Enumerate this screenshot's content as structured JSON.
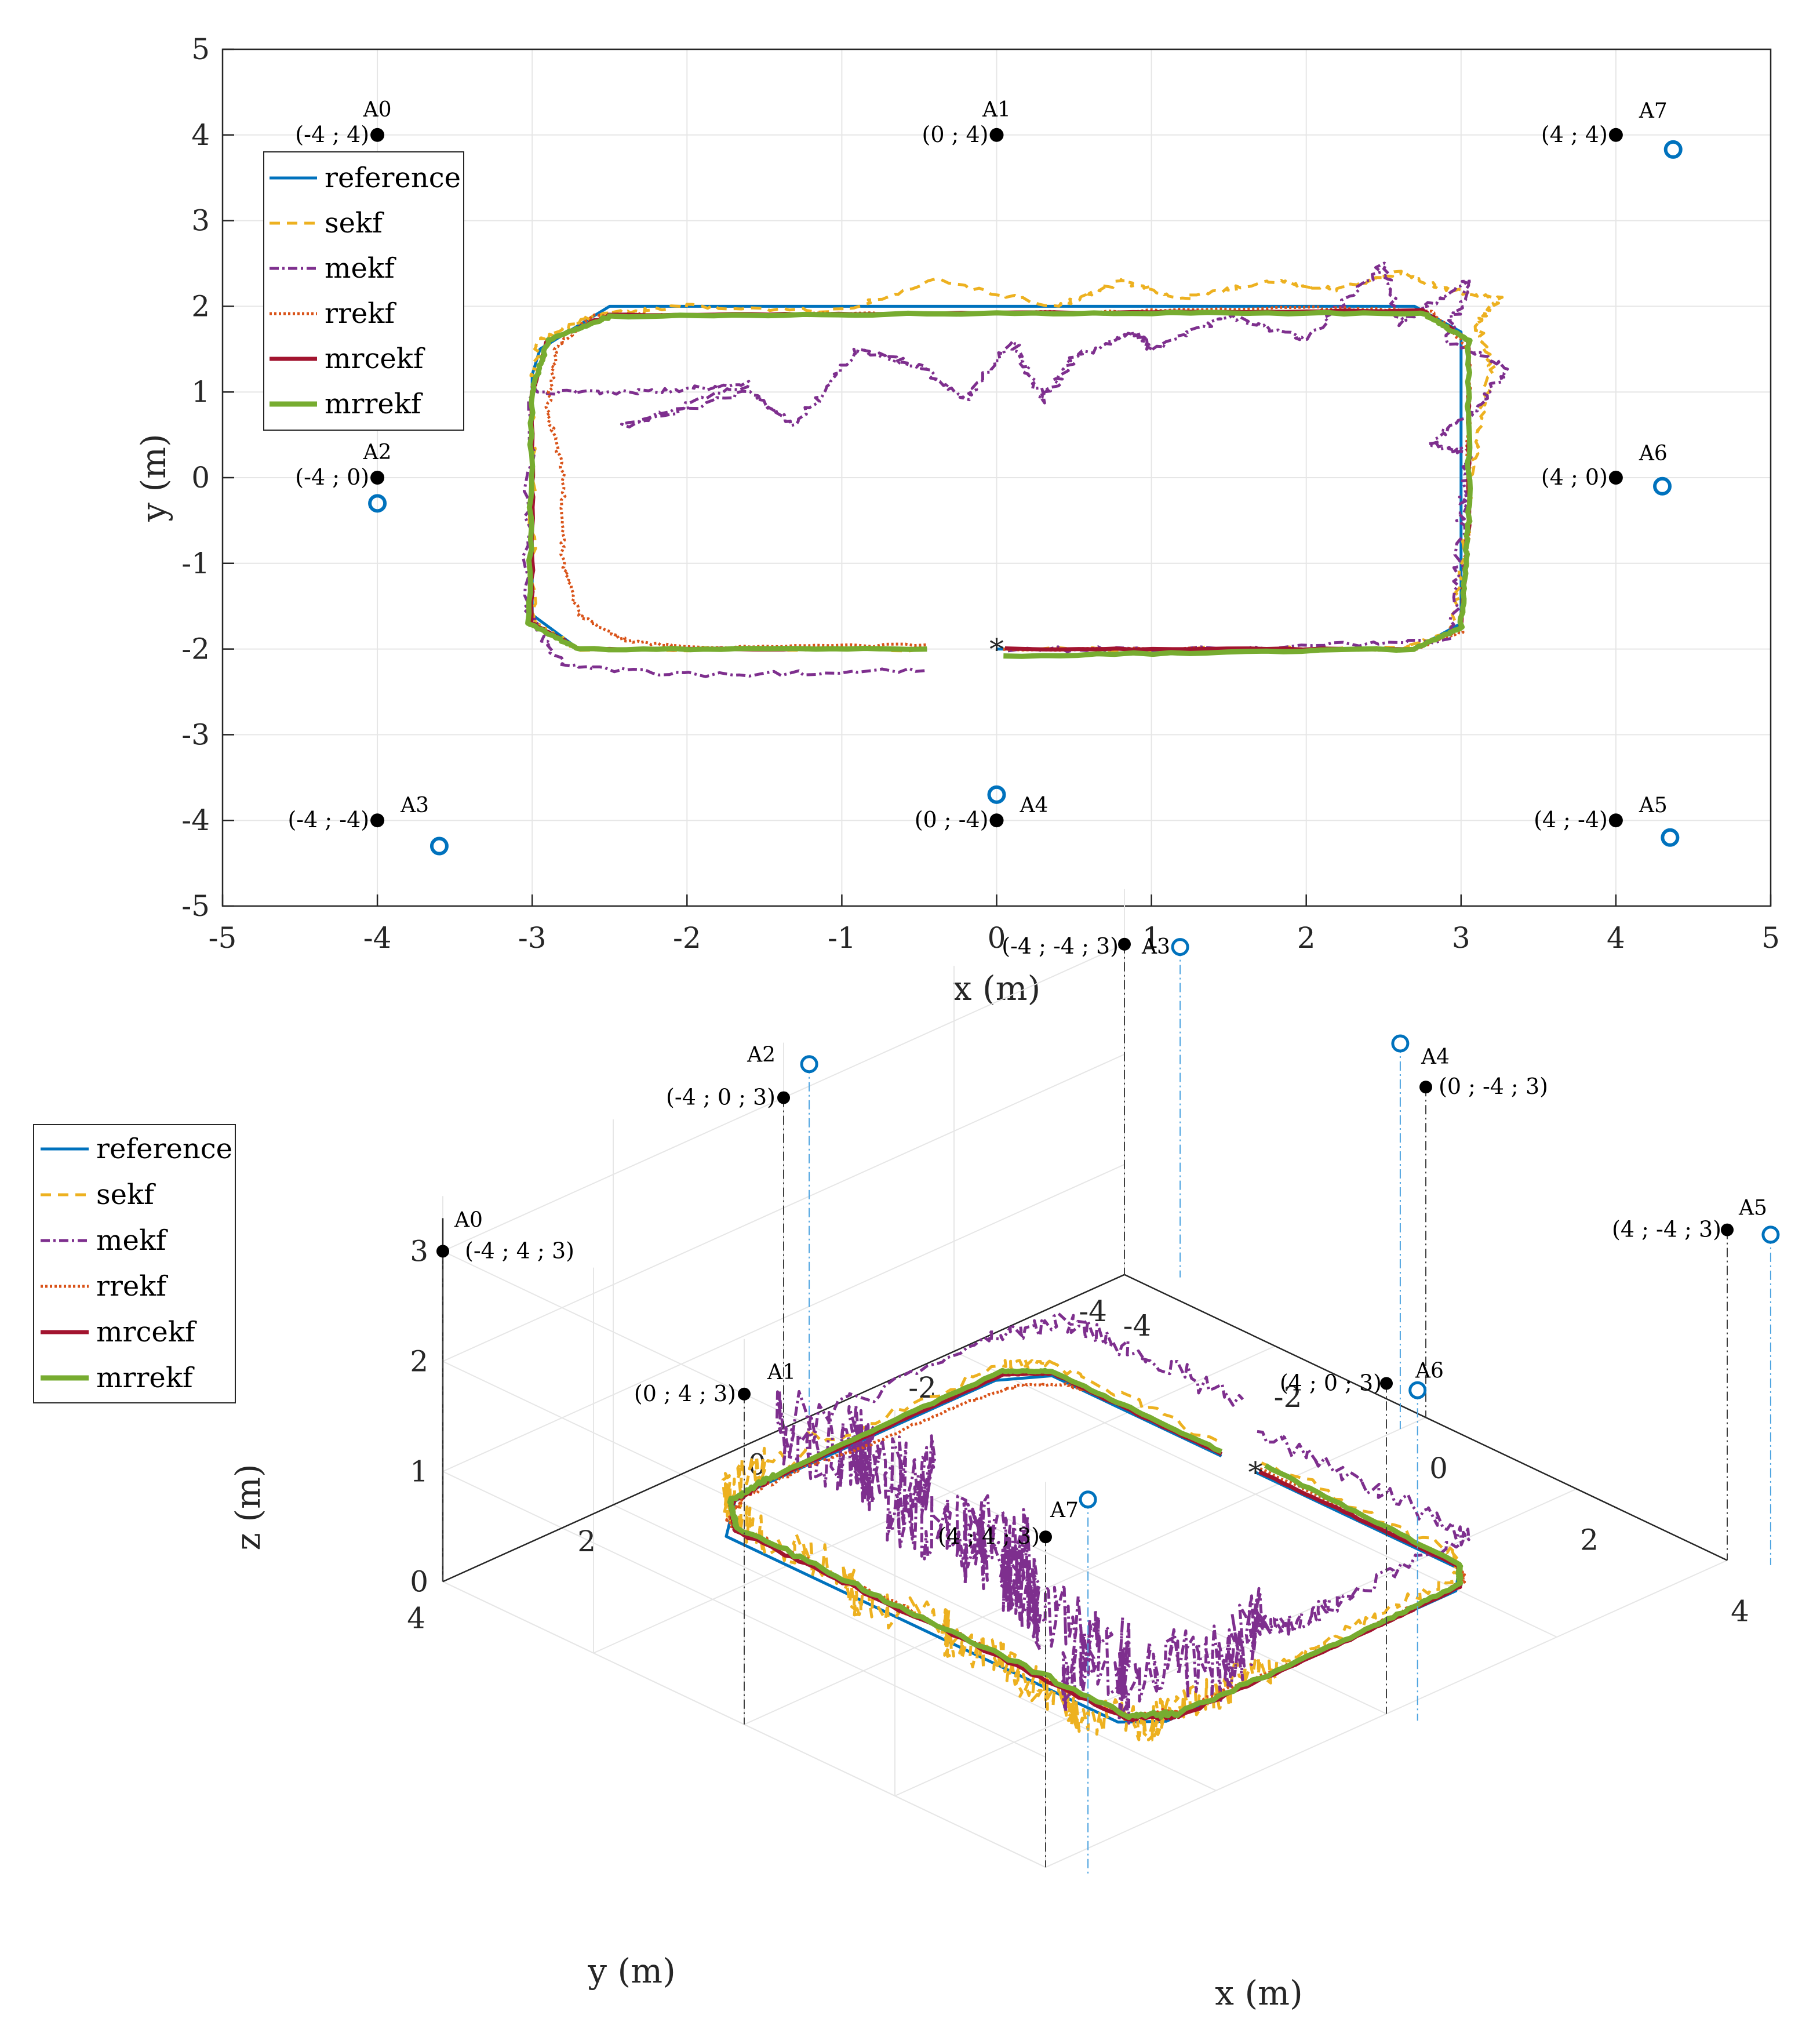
{
  "chart_data": [
    {
      "type": "line",
      "view": "top",
      "xlabel": "x (m)",
      "ylabel": "y (m)",
      "xlim": [
        -5,
        5
      ],
      "ylim": [
        -5,
        5
      ],
      "grid": true,
      "xticks": [
        "-5",
        "-4",
        "-3",
        "-2",
        "-1",
        "0",
        "1",
        "2",
        "3",
        "4",
        "5"
      ],
      "yticks": [
        "5",
        "4",
        "3",
        "2",
        "1",
        "0",
        "-1",
        "-2",
        "-3",
        "-4",
        "-5"
      ],
      "legend_position": "top-left",
      "anchors": [
        {
          "name": "A0",
          "label": "(-4 ; 4)",
          "x": -4,
          "y": 4,
          "est": null
        },
        {
          "name": "A1",
          "label": "(0 ; 4)",
          "x": 0,
          "y": 4,
          "est": null
        },
        {
          "name": "A2",
          "label": "(-4 ; 0)",
          "x": -4,
          "y": 0,
          "est": [
            -4.0,
            -0.3
          ]
        },
        {
          "name": "A3",
          "label": "(-4 ; -4)",
          "x": -4,
          "y": -4,
          "est": [
            -3.6,
            -4.3
          ]
        },
        {
          "name": "A4",
          "label": "(0 ; -4)",
          "x": 0,
          "y": -4,
          "est": [
            0.0,
            -3.7
          ]
        },
        {
          "name": "A5",
          "label": "(4 ; -4)",
          "x": 4,
          "y": -4,
          "est": [
            4.35,
            -4.2
          ]
        },
        {
          "name": "A6",
          "label": "(4 ; 0)",
          "x": 4,
          "y": 0,
          "est": [
            4.3,
            -0.1
          ]
        },
        {
          "name": "A7",
          "label": "(4 ; 4)",
          "x": 4,
          "y": 4,
          "est": [
            4.37,
            3.83
          ]
        }
      ],
      "series": [
        {
          "name": "reference",
          "color": "#0072BD",
          "dash": "",
          "width": 5,
          "points": [
            [
              0,
              -2
            ],
            [
              2.7,
              -2
            ],
            [
              3,
              -1.7
            ],
            [
              3,
              1.7
            ],
            [
              2.7,
              2
            ],
            [
              -2.5,
              2
            ],
            [
              -2.95,
              1.5
            ],
            [
              -3,
              1.2
            ],
            [
              -3,
              -1.6
            ],
            [
              -2.7,
              -2
            ],
            [
              -0.45,
              -2
            ]
          ]
        },
        {
          "name": "sekf",
          "color": "#EDB120",
          "dash": "18 12",
          "width": 5,
          "points": [
            [
              0.05,
              -2
            ],
            [
              2.6,
              -2
            ],
            [
              2.95,
              -1.8
            ],
            [
              3.05,
              -0.5
            ],
            [
              3.1,
              0.5
            ],
            [
              3.2,
              1.3
            ],
            [
              3.1,
              1.8
            ],
            [
              3.25,
              2.1
            ],
            [
              2.9,
              2.2
            ],
            [
              2.6,
              2.4
            ],
            [
              2.2,
              2.2
            ],
            [
              1.8,
              2.3
            ],
            [
              1.2,
              2.1
            ],
            [
              0.8,
              2.3
            ],
            [
              0.4,
              2.0
            ],
            [
              -0.4,
              2.3
            ],
            [
              -1.0,
              1.95
            ],
            [
              -2.0,
              2.0
            ],
            [
              -2.6,
              1.9
            ],
            [
              -2.95,
              1.6
            ],
            [
              -3.0,
              1.1
            ],
            [
              -3.0,
              -1.7
            ],
            [
              -2.7,
              -2
            ],
            [
              -0.45,
              -2
            ]
          ]
        },
        {
          "name": "mekf",
          "color": "#7E2F8E",
          "dash": "16 6 4 6",
          "width": 5,
          "points": [
            [
              0.05,
              -2
            ],
            [
              1.5,
              -2
            ],
            [
              2.95,
              -1.9
            ],
            [
              3.0,
              -0.5
            ],
            [
              3.05,
              0.3
            ],
            [
              2.8,
              0.4
            ],
            [
              3.1,
              0.8
            ],
            [
              3.3,
              1.3
            ],
            [
              2.9,
              1.6
            ],
            [
              3.05,
              2.3
            ],
            [
              2.6,
              1.8
            ],
            [
              2.5,
              2.5
            ],
            [
              2.0,
              1.6
            ],
            [
              1.5,
              1.9
            ],
            [
              1.0,
              1.5
            ],
            [
              0.9,
              1.7
            ],
            [
              0.5,
              1.4
            ],
            [
              0.3,
              0.9
            ],
            [
              0.1,
              1.6
            ],
            [
              -0.2,
              0.9
            ],
            [
              -0.5,
              1.3
            ],
            [
              -0.9,
              1.5
            ],
            [
              -1.3,
              0.6
            ],
            [
              -1.6,
              1.0
            ],
            [
              -2.4,
              0.6
            ],
            [
              -1.6,
              1.1
            ],
            [
              -2.2,
              1.0
            ],
            [
              -3.0,
              1.0
            ],
            [
              -3.05,
              -1.5
            ],
            [
              -2.8,
              -2.2
            ],
            [
              -2.0,
              -2.3
            ],
            [
              -0.45,
              -2.25
            ]
          ]
        },
        {
          "name": "rrekf",
          "color": "#D95319",
          "dash": "4 4",
          "width": 5,
          "points": [
            [
              0.05,
              -2
            ],
            [
              2.7,
              -2
            ],
            [
              3.0,
              -1.8
            ],
            [
              3.05,
              -0.5
            ],
            [
              3.05,
              1.5
            ],
            [
              2.8,
              1.95
            ],
            [
              2.0,
              1.98
            ],
            [
              0,
              1.92
            ],
            [
              -2.0,
              1.9
            ],
            [
              -2.6,
              1.9
            ],
            [
              -2.85,
              1.5
            ],
            [
              -2.9,
              0.8
            ],
            [
              -2.8,
              0
            ],
            [
              -2.8,
              -1.0
            ],
            [
              -2.7,
              -1.6
            ],
            [
              -2.4,
              -1.9
            ],
            [
              -2.0,
              -1.98
            ],
            [
              -0.45,
              -1.95
            ]
          ]
        },
        {
          "name": "mrcekf",
          "color": "#A2142F",
          "dash": "",
          "width": 7,
          "points": [
            [
              0.05,
              -2
            ],
            [
              2.7,
              -2
            ],
            [
              3.0,
              -1.75
            ],
            [
              3.05,
              -0.5
            ],
            [
              3.05,
              1.6
            ],
            [
              2.75,
              1.95
            ],
            [
              0,
              1.92
            ],
            [
              -2.5,
              1.9
            ],
            [
              -2.9,
              1.6
            ],
            [
              -3.0,
              1.0
            ],
            [
              -3.0,
              -1.7
            ],
            [
              -2.7,
              -2
            ],
            [
              -0.45,
              -2
            ]
          ]
        },
        {
          "name": "mrrekf",
          "color": "#77AC30",
          "dash": "",
          "width": 9,
          "points": [
            [
              0.05,
              -2.08
            ],
            [
              2.7,
              -2
            ],
            [
              3.0,
              -1.75
            ],
            [
              3.05,
              -0.5
            ],
            [
              3.05,
              1.6
            ],
            [
              2.75,
              1.92
            ],
            [
              0,
              1.92
            ],
            [
              -2.5,
              1.88
            ],
            [
              -2.9,
              1.6
            ],
            [
              -3.0,
              1.0
            ],
            [
              -3.02,
              -1.7
            ],
            [
              -2.7,
              -2
            ],
            [
              -0.45,
              -2
            ]
          ]
        }
      ]
    },
    {
      "type": "line",
      "view": "3d",
      "xlabel": "x (m)",
      "ylabel": "y (m)",
      "zlabel": "z (m)",
      "xlim": [
        -4,
        4
      ],
      "ylim": [
        -4,
        4
      ],
      "zlim": [
        0,
        3
      ],
      "grid": true,
      "xticks": [
        "-4",
        "-2",
        "0",
        "2",
        "4"
      ],
      "yticks": [
        "-4",
        "-2",
        "0",
        "2",
        "4"
      ],
      "zticks": [
        "0",
        "1",
        "2",
        "3"
      ],
      "legend_position": "top-left",
      "anchors": [
        {
          "name": "A0",
          "label": "(-4 ; 4 ; 3)",
          "x": -4,
          "y": 4,
          "z": 3,
          "est": null
        },
        {
          "name": "A1",
          "label": "(0 ; 4 ; 3)",
          "x": 0,
          "y": 4,
          "z": 3,
          "est": null
        },
        {
          "name": "A2",
          "label": "(-4 ; 0 ; 3)",
          "x": -4,
          "y": 0,
          "z": 3,
          "est": [
            -4.0,
            -0.3,
            3.2
          ]
        },
        {
          "name": "A3",
          "label": "(-4 ; -4 ; 3)",
          "x": -4,
          "y": -4,
          "z": 3,
          "est": [
            -3.6,
            -4.3,
            3.0
          ]
        },
        {
          "name": "A4",
          "label": "(0 ; -4 ; 3)",
          "x": 0,
          "y": -4,
          "z": 3,
          "est": [
            0.0,
            -3.7,
            3.5
          ]
        },
        {
          "name": "A5",
          "label": "(4 ; -4 ; 3)",
          "x": 4,
          "y": -4,
          "z": 3,
          "est": [
            4.35,
            -4.2,
            3.0
          ]
        },
        {
          "name": "A6",
          "label": "(4 ; 0 ; 3)",
          "x": 4,
          "y": 0,
          "z": 3,
          "est": [
            4.3,
            -0.1,
            3.0
          ]
        },
        {
          "name": "A7",
          "label": "(4 ; 4 ; 3)",
          "x": 4,
          "y": 4,
          "z": 3,
          "est": [
            4.37,
            3.83,
            3.4
          ]
        }
      ],
      "series": [
        {
          "name": "reference",
          "color": "#0072BD",
          "dash": "",
          "width": 5
        },
        {
          "name": "sekf",
          "color": "#EDB120",
          "dash": "18 12",
          "width": 5
        },
        {
          "name": "mekf",
          "color": "#7E2F8E",
          "dash": "16 6 4 6",
          "width": 5
        },
        {
          "name": "rrekf",
          "color": "#D95319",
          "dash": "4 4",
          "width": 5
        },
        {
          "name": "mrcekf",
          "color": "#A2142F",
          "dash": "",
          "width": 7
        },
        {
          "name": "mrrekf",
          "color": "#77AC30",
          "dash": "",
          "width": 9
        }
      ]
    }
  ]
}
